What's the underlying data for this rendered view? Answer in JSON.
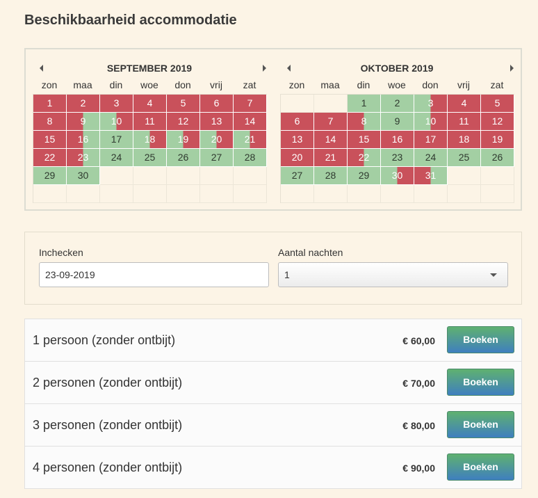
{
  "title": "Beschikbaarheid accommodatie",
  "calendar": {
    "weekdays": [
      "zon",
      "maa",
      "din",
      "woe",
      "don",
      "vrij",
      "zat"
    ],
    "months": [
      {
        "name": "SEPTEMBER 2019",
        "weeks": [
          [
            [
              "1",
              "red"
            ],
            [
              "2",
              "red"
            ],
            [
              "3",
              "red"
            ],
            [
              "4",
              "red"
            ],
            [
              "5",
              "red"
            ],
            [
              "6",
              "red"
            ],
            [
              "7",
              "red"
            ]
          ],
          [
            [
              "8",
              "red"
            ],
            [
              "9",
              "red-green"
            ],
            [
              "10",
              "green-red"
            ],
            [
              "11",
              "red"
            ],
            [
              "12",
              "red"
            ],
            [
              "13",
              "red"
            ],
            [
              "14",
              "red"
            ]
          ],
          [
            [
              "15",
              "red"
            ],
            [
              "16",
              "red-green"
            ],
            [
              "17",
              "green"
            ],
            [
              "18",
              "green-red"
            ],
            [
              "19",
              "green-red"
            ],
            [
              "20",
              "green-red"
            ],
            [
              "21",
              "green-red"
            ]
          ],
          [
            [
              "22",
              "red"
            ],
            [
              "23",
              "red-green"
            ],
            [
              "24",
              "green"
            ],
            [
              "25",
              "green"
            ],
            [
              "26",
              "green"
            ],
            [
              "27",
              "green"
            ],
            [
              "28",
              "green"
            ]
          ],
          [
            [
              "29",
              "green"
            ],
            [
              "30",
              "green"
            ],
            [
              "",
              "empty"
            ],
            [
              "",
              "empty"
            ],
            [
              "",
              "empty"
            ],
            [
              "",
              "empty"
            ],
            [
              "",
              "empty"
            ]
          ],
          [
            [
              "",
              "empty"
            ],
            [
              "",
              "empty"
            ],
            [
              "",
              "empty"
            ],
            [
              "",
              "empty"
            ],
            [
              "",
              "empty"
            ],
            [
              "",
              "empty"
            ],
            [
              "",
              "empty"
            ]
          ]
        ]
      },
      {
        "name": "OKTOBER 2019",
        "weeks": [
          [
            [
              "",
              "empty"
            ],
            [
              "",
              "empty"
            ],
            [
              "1",
              "green"
            ],
            [
              "2",
              "green"
            ],
            [
              "3",
              "green-red"
            ],
            [
              "4",
              "red"
            ],
            [
              "5",
              "red"
            ]
          ],
          [
            [
              "6",
              "red"
            ],
            [
              "7",
              "red"
            ],
            [
              "8",
              "red-green"
            ],
            [
              "9",
              "green"
            ],
            [
              "10",
              "green-red"
            ],
            [
              "11",
              "red"
            ],
            [
              "12",
              "red"
            ]
          ],
          [
            [
              "13",
              "red"
            ],
            [
              "14",
              "red"
            ],
            [
              "15",
              "red"
            ],
            [
              "16",
              "red"
            ],
            [
              "17",
              "red"
            ],
            [
              "18",
              "red"
            ],
            [
              "19",
              "red"
            ]
          ],
          [
            [
              "20",
              "red"
            ],
            [
              "21",
              "red"
            ],
            [
              "22",
              "red-green"
            ],
            [
              "23",
              "green"
            ],
            [
              "24",
              "green"
            ],
            [
              "25",
              "green"
            ],
            [
              "26",
              "green"
            ]
          ],
          [
            [
              "27",
              "green"
            ],
            [
              "28",
              "green"
            ],
            [
              "29",
              "green"
            ],
            [
              "30",
              "green-red"
            ],
            [
              "31",
              "red-green"
            ],
            [
              "",
              "empty"
            ],
            [
              "",
              "empty"
            ]
          ],
          [
            [
              "",
              "empty"
            ],
            [
              "",
              "empty"
            ],
            [
              "",
              "empty"
            ],
            [
              "",
              "empty"
            ],
            [
              "",
              "empty"
            ],
            [
              "",
              "empty"
            ],
            [
              "",
              "empty"
            ]
          ]
        ]
      }
    ],
    "colors": {
      "unavailable": "#c9515b",
      "available": "#a3cfa3"
    },
    "icons": {
      "prev": "triangle-left-icon",
      "next": "triangle-right-icon"
    }
  },
  "form": {
    "checkin_label": "Inchecken",
    "checkin_value": "23-09-2019",
    "nights_label": "Aantal nachten",
    "nights_value": "1"
  },
  "rates": [
    {
      "label": "1 persoon (zonder ontbijt)",
      "price": "€ 60,00",
      "button": "Boeken"
    },
    {
      "label": "2 personen (zonder ontbijt)",
      "price": "€ 70,00",
      "button": "Boeken"
    },
    {
      "label": "3 personen (zonder ontbijt)",
      "price": "€ 80,00",
      "button": "Boeken"
    },
    {
      "label": "4 personen (zonder ontbijt)",
      "price": "€ 90,00",
      "button": "Boeken"
    }
  ]
}
